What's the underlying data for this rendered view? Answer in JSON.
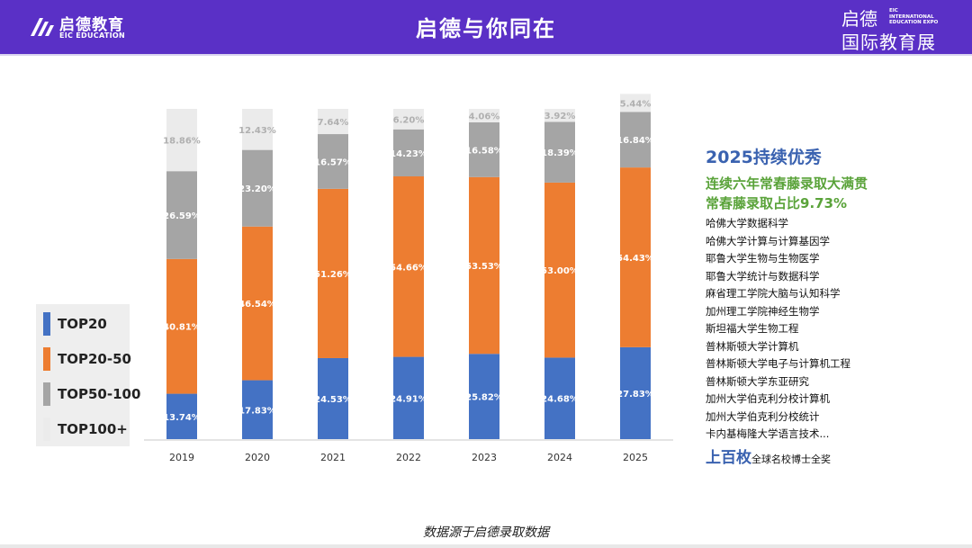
{
  "header": {
    "title": "启德与你同在",
    "logo_left": {
      "name": "启德教育",
      "sub": "EIC EDUCATION"
    },
    "logo_right": {
      "line1": "启德",
      "line2": "国际教育展",
      "small": "EIC\nINTERNATIONAL\nEDUCATION EXPO"
    }
  },
  "legend": {
    "items": [
      {
        "label": "TOP20",
        "color": "#4472c4"
      },
      {
        "label": "TOP20-50",
        "color": "#ed7d31"
      },
      {
        "label": "TOP50-100",
        "color": "#a5a5a5"
      },
      {
        "label": "TOP100+",
        "color": "#ebebeb"
      }
    ]
  },
  "chart_data": {
    "type": "bar",
    "stacked": true,
    "categories": [
      "2019",
      "2020",
      "2021",
      "2022",
      "2023",
      "2024",
      "2025"
    ],
    "series": [
      {
        "name": "TOP20",
        "color": "#4472c4",
        "values": [
          13.74,
          17.83,
          24.53,
          24.91,
          25.82,
          24.68,
          27.83
        ]
      },
      {
        "name": "TOP20-50",
        "color": "#ed7d31",
        "values": [
          40.81,
          46.54,
          51.26,
          54.66,
          53.53,
          53.0,
          54.43
        ]
      },
      {
        "name": "TOP50-100",
        "color": "#a5a5a5",
        "values": [
          26.59,
          23.2,
          16.57,
          14.23,
          16.58,
          18.39,
          16.84
        ]
      },
      {
        "name": "TOP100+",
        "color": "#ebebeb",
        "values": [
          18.86,
          12.43,
          7.64,
          6.2,
          4.06,
          3.92,
          5.44
        ]
      }
    ],
    "labels": [
      [
        "13.74%",
        "17.83%",
        "24.53%",
        "24.91%",
        "25.82%",
        "24.68%",
        "27.83%"
      ],
      [
        "40.81%",
        "46.54%",
        "51.26%",
        "54.66%",
        "53.53%",
        "53.00%",
        "54.43%"
      ],
      [
        "26.59%",
        "23.20%",
        "16.57%",
        "14.23%",
        "16.58%",
        "18.39%",
        "16.84%"
      ],
      [
        "18.86%",
        "12.43%",
        "7.64%",
        "6.20%",
        "4.06%",
        "3.92%",
        "5.44%"
      ]
    ],
    "ylim": [
      0,
      100
    ],
    "grid": false,
    "legend_position": "left"
  },
  "panel": {
    "heading": "2025持续优秀",
    "highlight1": "连续六年常春藤录取大满贯",
    "highlight2": "常春藤录取占比9.73%",
    "list": [
      "哈佛大学数据科学",
      "哈佛大学计算与计算基因学",
      "耶鲁大学生物与生物医学",
      "耶鲁大学统计与数据科学",
      "麻省理工学院大脑与认知科学",
      "加州理工学院神经生物学",
      "斯坦福大学生物工程",
      "普林斯顿大学计算机",
      "普林斯顿大学电子与计算机工程",
      "普林斯顿大学东亚研究",
      "加州大学伯克利分校计算机",
      "加州大学伯克利分校统计",
      "卡内基梅隆大学语言技术..."
    ],
    "bottom_big": "上百枚",
    "bottom_small": "全球名校博士全奖"
  },
  "source": "数据源于启德录取数据"
}
